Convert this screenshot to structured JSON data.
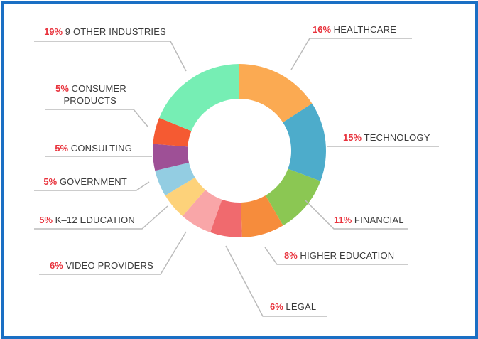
{
  "chart_data": {
    "type": "pie",
    "style": "donut",
    "accent_color": "#e8323c",
    "line_color": "#bbbbbb",
    "slices": [
      {
        "label": "HEALTHCARE",
        "value": 16,
        "pct_text": "16%",
        "color": "#fbaa52"
      },
      {
        "label": "TECHNOLOGY",
        "value": 15,
        "pct_text": "15%",
        "color": "#4daccb"
      },
      {
        "label": "FINANCIAL",
        "value": 11,
        "pct_text": "11%",
        "color": "#8bc753"
      },
      {
        "label": "HIGHER EDUCATION",
        "value": 8,
        "pct_text": "8%",
        "color": "#f68c3c"
      },
      {
        "label": "LEGAL",
        "value": 6,
        "pct_text": "6%",
        "color": "#f06a6e"
      },
      {
        "label": "VIDEO PROVIDERS",
        "value": 6,
        "pct_text": "6%",
        "color": "#f9a6a8"
      },
      {
        "label": "K–12 EDUCATION",
        "value": 5,
        "pct_text": "5%",
        "color": "#fdd27a"
      },
      {
        "label": "GOVERNMENT",
        "value": 5,
        "pct_text": "5%",
        "color": "#93cde2"
      },
      {
        "label": "CONSULTING",
        "value": 5,
        "pct_text": "5%",
        "color": "#9e5096"
      },
      {
        "label": "CONSUMER PRODUCTS",
        "value": 5,
        "pct_text": "5%",
        "color": "#f55a32"
      },
      {
        "label": "9 OTHER INDUSTRIES",
        "value": 19,
        "pct_text": "19%",
        "color": "#76eeb4"
      }
    ]
  }
}
